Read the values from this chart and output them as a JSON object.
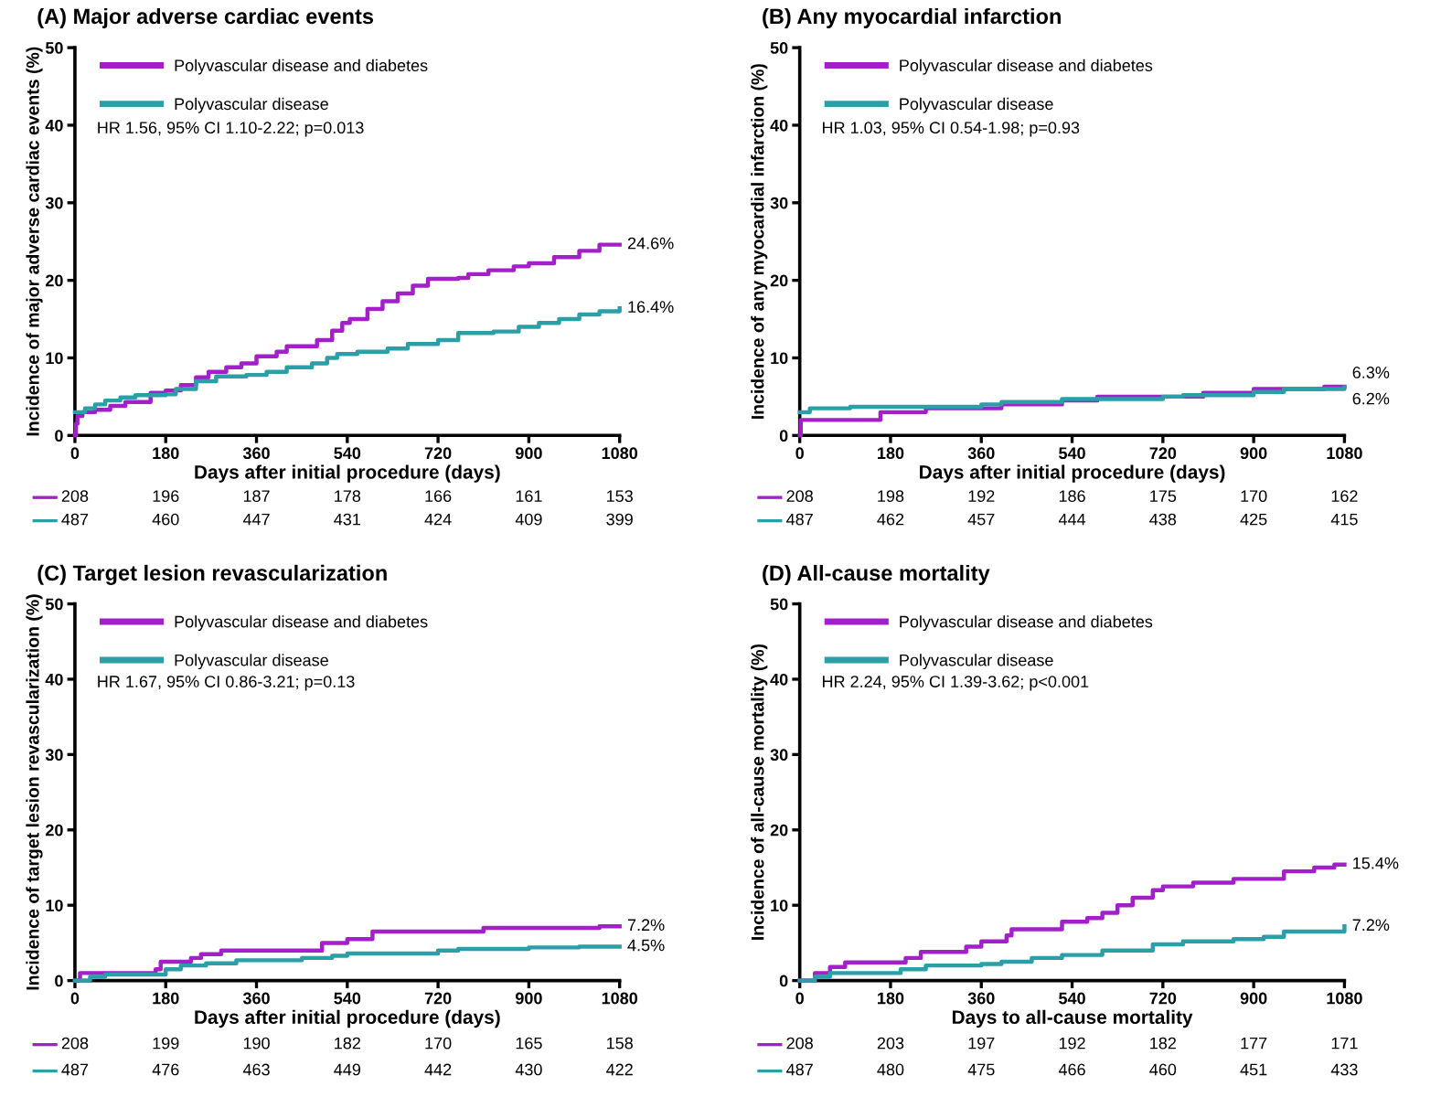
{
  "chart_data": [
    {
      "type": "step",
      "title": "(A) Major adverse cardiac events",
      "xlabel": "Days after initial procedure (days)",
      "ylabel": "Incidence of major adverse cardiac events (%)",
      "xlim": [
        0,
        1080
      ],
      "ylim": [
        0,
        50
      ],
      "xticks": [
        0,
        180,
        360,
        540,
        720,
        900,
        1080
      ],
      "yticks": [
        0,
        10,
        20,
        30,
        40,
        50
      ],
      "legend": "top left",
      "grid": false,
      "marker": "none",
      "line_style": "solid",
      "series": [
        {
          "name": "Polyvascular disease and diabetes",
          "color": "#a21fc9",
          "x": [
            0,
            2,
            5,
            15,
            40,
            70,
            100,
            150,
            180,
            210,
            240,
            265,
            300,
            330,
            360,
            400,
            420,
            480,
            510,
            530,
            545,
            580,
            610,
            640,
            670,
            700,
            760,
            780,
            820,
            870,
            900,
            950,
            1000,
            1040,
            1080
          ],
          "values": [
            0,
            1.5,
            2.5,
            3,
            3.3,
            3.8,
            4.3,
            5.5,
            5.8,
            6.5,
            7.5,
            8.2,
            8.8,
            9.3,
            10.2,
            10.8,
            11.5,
            12.3,
            13.5,
            14.5,
            15,
            16.3,
            17.3,
            18.3,
            19.3,
            20.2,
            20.3,
            20.8,
            21.3,
            21.8,
            22.2,
            23,
            23.8,
            24.6,
            24.6
          ],
          "value_labels": [
            null,
            null,
            null,
            null,
            null,
            null,
            null,
            null,
            null,
            null,
            null,
            null,
            null,
            null,
            null,
            null,
            null,
            null,
            null,
            null,
            null,
            null,
            null,
            null,
            null,
            null,
            null,
            null,
            null,
            null,
            null,
            null,
            null,
            null,
            "24.6%"
          ]
        },
        {
          "name": "Polyvascular disease",
          "color": "#2a9fa8",
          "x": [
            0,
            20,
            40,
            60,
            90,
            120,
            180,
            200,
            240,
            280,
            340,
            380,
            420,
            470,
            500,
            520,
            560,
            620,
            660,
            720,
            760,
            830,
            880,
            920,
            960,
            1000,
            1040,
            1080
          ],
          "values": [
            3,
            3.5,
            4,
            4.5,
            4.9,
            5.2,
            5.3,
            6,
            7,
            7.6,
            7.8,
            8.2,
            8.8,
            9.3,
            10,
            10.5,
            10.8,
            11.2,
            11.8,
            12.3,
            13.2,
            13.4,
            14,
            14.5,
            15,
            15.6,
            16,
            16.4
          ],
          "value_labels": [
            null,
            null,
            null,
            null,
            null,
            null,
            null,
            null,
            null,
            null,
            null,
            null,
            null,
            null,
            null,
            null,
            null,
            null,
            null,
            null,
            null,
            null,
            null,
            null,
            null,
            null,
            null,
            "16.4%"
          ]
        }
      ],
      "annotations": [
        "HR 1.56, 95% CI 1.10-2.22; p=0.013",
        "208",
        "196",
        "187",
        "178",
        "166",
        "161",
        "153",
        "487",
        "460",
        "447",
        "431",
        "424",
        "409",
        "399"
      ]
    },
    {
      "type": "step",
      "title": "(B) Any myocardial infarction",
      "xlabel": "Days after initial procedure (days)",
      "ylabel": "Incidence of any myocardial infarction (%)",
      "xlim": [
        0,
        1080
      ],
      "ylim": [
        0,
        50
      ],
      "xticks": [
        0,
        180,
        360,
        540,
        720,
        900,
        1080
      ],
      "yticks": [
        0,
        10,
        20,
        30,
        40,
        50
      ],
      "legend": "top left",
      "grid": false,
      "marker": "none",
      "line_style": "solid",
      "series": [
        {
          "name": "Polyvascular disease and diabetes",
          "color": "#a21fc9",
          "x": [
            0,
            2,
            160,
            250,
            400,
            520,
            590,
            800,
            900,
            1040,
            1080
          ],
          "values": [
            0,
            2,
            3,
            3.5,
            4,
            4.5,
            5,
            5.5,
            6,
            6.3,
            6.3
          ],
          "value_labels": [
            null,
            null,
            null,
            null,
            null,
            null,
            null,
            null,
            null,
            null,
            "6.3%"
          ]
        },
        {
          "name": "Polyvascular disease",
          "color": "#2a9fa8",
          "x": [
            0,
            20,
            100,
            360,
            400,
            520,
            720,
            760,
            900,
            960,
            1080
          ],
          "values": [
            3,
            3.5,
            3.7,
            4,
            4.3,
            4.7,
            5,
            5.2,
            5.6,
            6,
            6.2
          ],
          "value_labels": [
            null,
            null,
            null,
            null,
            null,
            null,
            null,
            null,
            null,
            null,
            "6.2%"
          ]
        }
      ],
      "annotations": [
        "HR 1.03, 95% CI 0.54-1.98; p=0.93",
        "208",
        "198",
        "192",
        "186",
        "175",
        "170",
        "162",
        "487",
        "462",
        "457",
        "444",
        "438",
        "425",
        "415"
      ]
    },
    {
      "type": "step",
      "title": "(C) Target lesion revascularization",
      "xlabel": "Days after initial procedure (days)",
      "ylabel": "Incidence of target lesion revascularization (%)",
      "xlim": [
        0,
        1080
      ],
      "ylim": [
        0,
        50
      ],
      "xticks": [
        0,
        180,
        360,
        540,
        720,
        900,
        1080
      ],
      "yticks": [
        0,
        10,
        20,
        30,
        40,
        50
      ],
      "legend": "top left",
      "grid": false,
      "marker": "none",
      "line_style": "solid",
      "series": [
        {
          "name": "Polyvascular disease and diabetes",
          "color": "#a21fc9",
          "x": [
            0,
            10,
            160,
            170,
            230,
            250,
            290,
            490,
            540,
            590,
            810,
            1040,
            1080
          ],
          "values": [
            0,
            1,
            1.5,
            2.5,
            3,
            3.5,
            4,
            5,
            5.5,
            6.5,
            7,
            7.2,
            7.2
          ],
          "value_labels": [
            null,
            null,
            null,
            null,
            null,
            null,
            null,
            null,
            null,
            null,
            null,
            null,
            "7.2%"
          ]
        },
        {
          "name": "Polyvascular disease",
          "color": "#2a9fa8",
          "x": [
            0,
            30,
            60,
            180,
            210,
            260,
            320,
            450,
            510,
            540,
            720,
            760,
            900,
            1000,
            1080
          ],
          "values": [
            0,
            0.5,
            0.8,
            1.5,
            2,
            2.3,
            2.7,
            3,
            3.3,
            3.6,
            4,
            4.2,
            4.4,
            4.5,
            4.5
          ],
          "value_labels": [
            null,
            null,
            null,
            null,
            null,
            null,
            null,
            null,
            null,
            null,
            null,
            null,
            null,
            null,
            "4.5%"
          ]
        }
      ],
      "annotations": [
        "HR 1.67, 95% CI 0.86-3.21; p=0.13",
        "208",
        "199",
        "190",
        "182",
        "170",
        "165",
        "158",
        "487",
        "476",
        "463",
        "449",
        "442",
        "430",
        "422"
      ]
    },
    {
      "type": "step",
      "title": "(D) All-cause mortality",
      "xlabel": "Days to all-cause mortality",
      "ylabel": "Incidence of all-cause mortality (%)",
      "xlim": [
        0,
        1080
      ],
      "ylim": [
        0,
        50
      ],
      "xticks": [
        0,
        180,
        360,
        540,
        720,
        900,
        1080
      ],
      "yticks": [
        0,
        10,
        20,
        30,
        40,
        50
      ],
      "legend": "top left",
      "grid": false,
      "marker": "none",
      "line_style": "solid",
      "series": [
        {
          "name": "Polyvascular disease and diabetes",
          "color": "#a21fc9",
          "x": [
            0,
            30,
            60,
            90,
            210,
            240,
            330,
            360,
            410,
            420,
            520,
            570,
            600,
            630,
            660,
            700,
            720,
            780,
            860,
            960,
            1020,
            1060,
            1080
          ],
          "values": [
            0,
            1,
            1.8,
            2.4,
            3,
            3.8,
            4.5,
            5.2,
            6,
            6.8,
            7.8,
            8.3,
            9,
            10,
            11,
            12,
            12.5,
            13,
            13.5,
            14.5,
            15,
            15.4,
            15.4
          ],
          "value_labels": [
            null,
            null,
            null,
            null,
            null,
            null,
            null,
            null,
            null,
            null,
            null,
            null,
            null,
            null,
            null,
            null,
            null,
            null,
            null,
            null,
            null,
            null,
            "15.4%"
          ]
        },
        {
          "name": "Polyvascular disease",
          "color": "#2a9fa8",
          "x": [
            0,
            30,
            60,
            200,
            250,
            360,
            400,
            460,
            520,
            600,
            700,
            760,
            860,
            920,
            960,
            1080
          ],
          "values": [
            0,
            0.5,
            1,
            1.5,
            2,
            2.2,
            2.5,
            3,
            3.4,
            4,
            4.8,
            5.2,
            5.5,
            5.8,
            6.5,
            7.2
          ],
          "value_labels": [
            null,
            null,
            null,
            null,
            null,
            null,
            null,
            null,
            null,
            null,
            null,
            null,
            null,
            null,
            null,
            "7.2%"
          ]
        }
      ],
      "annotations": [
        "HR 2.24, 95% CI 1.39-3.62; p<0.001",
        "208",
        "203",
        "197",
        "192",
        "182",
        "177",
        "171",
        "487",
        "480",
        "475",
        "466",
        "460",
        "451",
        "433"
      ]
    }
  ]
}
